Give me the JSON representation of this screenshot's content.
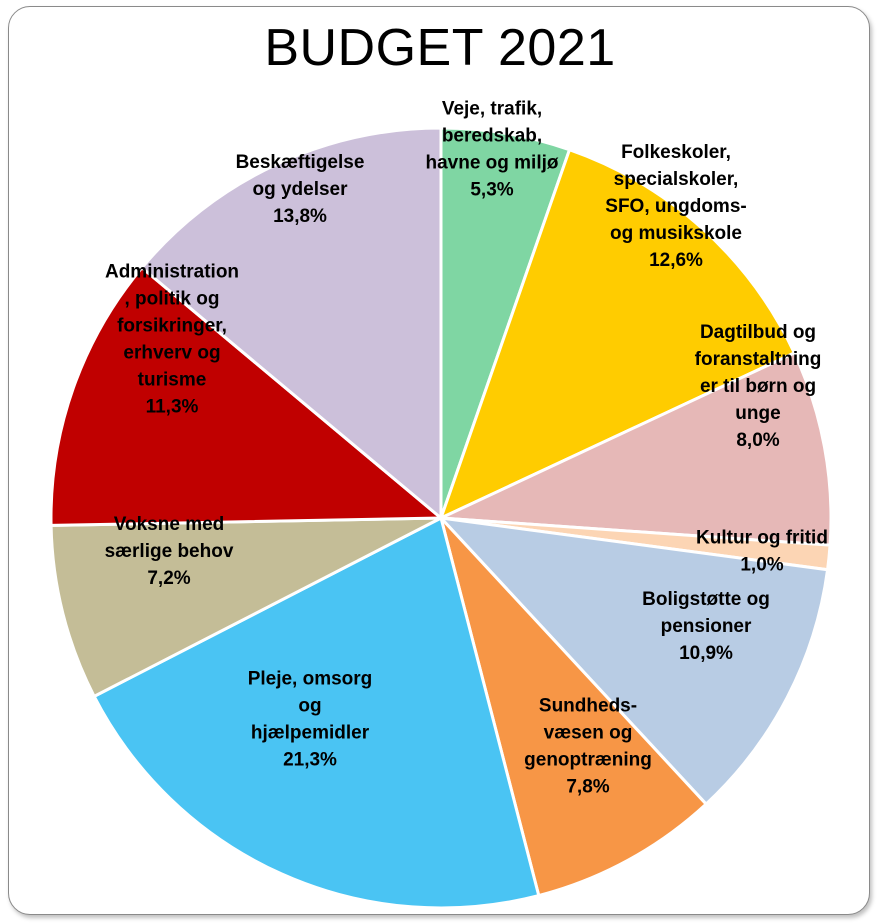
{
  "chart_data": {
    "type": "pie",
    "title": "BUDGET 2021",
    "start": "top",
    "direction": "clockwise",
    "slices": [
      {
        "label": [
          "Veje, trafik,",
          "beredskab,",
          "havne og miljø",
          "5,3%"
        ],
        "value": 5.3,
        "color": "#7fd6a3"
      },
      {
        "label": [
          "Folkeskoler,",
          "specialskoler,",
          "SFO, ungdoms-",
          "og musikskole",
          "12,6%"
        ],
        "value": 12.6,
        "color": "#ffcc00"
      },
      {
        "label": [
          "Dagtilbud og",
          "foranstaltning",
          "er til børn og",
          "unge",
          "8,0%"
        ],
        "value": 8.0,
        "color": "#e6b8b7"
      },
      {
        "label": [
          "Kultur og fritid",
          "1,0%"
        ],
        "value": 1.0,
        "color": "#fcd5b4"
      },
      {
        "label": [
          "Boligstøtte og",
          "pensioner",
          "10,9%"
        ],
        "value": 10.9,
        "color": "#b8cce4"
      },
      {
        "label": [
          "Sundheds-",
          "væsen og",
          "genoptræning",
          "7,8%"
        ],
        "value": 7.8,
        "color": "#f79646"
      },
      {
        "label": [
          "Pleje, omsorg",
          "og",
          "hjælpemidler",
          "21,3%"
        ],
        "value": 21.3,
        "color": "#4ac4f3"
      },
      {
        "label": [
          "Voksne med",
          "særlige behov",
          "7,2%"
        ],
        "value": 7.2,
        "color": "#c4bd97"
      },
      {
        "label": [
          "Administration",
          ", politik og",
          "forsikringer,",
          "erhverv og",
          "turisme",
          "11,3%"
        ],
        "value": 11.3,
        "color": "#c00000"
      },
      {
        "label": [
          "Beskæftigelse",
          "og ydelser",
          "13,8%"
        ],
        "value": 13.8,
        "color": "#ccc0da"
      }
    ]
  }
}
